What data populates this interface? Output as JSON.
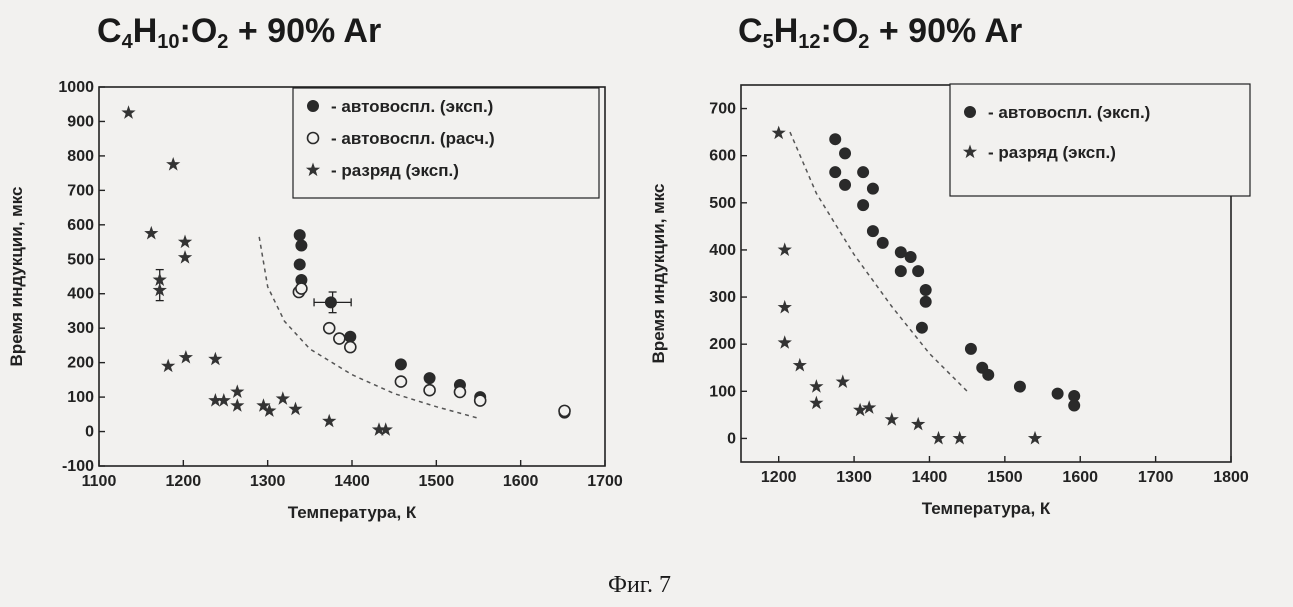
{
  "figure_caption": "Фиг. 7",
  "chart_data": [
    {
      "type": "scatter",
      "title_parts": [
        "C",
        "4",
        "H",
        "10",
        ":O",
        "2",
        " + 90% Ar"
      ],
      "xlabel": "Температура, К",
      "ylabel": "Время индукции, мкс",
      "xlim": [
        1100,
        1700
      ],
      "ylim": [
        -100,
        1000
      ],
      "xticks": [
        1100,
        1200,
        1300,
        1400,
        1500,
        1600,
        1700
      ],
      "yticks": [
        -100,
        0,
        100,
        200,
        300,
        400,
        500,
        600,
        700,
        800,
        900,
        1000
      ],
      "grid": false,
      "legend_position": "top-right",
      "series": [
        {
          "name": "- автовоспл. (эксп.)",
          "marker": "filled-circle",
          "points": [
            [
              1338,
              570
            ],
            [
              1340,
              540
            ],
            [
              1338,
              485
            ],
            [
              1340,
              440
            ],
            [
              1375,
              375
            ],
            [
              1398,
              275
            ],
            [
              1458,
              195
            ],
            [
              1492,
              155
            ],
            [
              1528,
              135
            ],
            [
              1552,
              100
            ],
            [
              1652,
              55
            ]
          ]
        },
        {
          "name": "- автовоспл. (расч.)",
          "marker": "open-circle",
          "points": [
            [
              1337,
              405
            ],
            [
              1340,
              415
            ],
            [
              1373,
              300
            ],
            [
              1385,
              270
            ],
            [
              1398,
              245
            ],
            [
              1458,
              145
            ],
            [
              1492,
              120
            ],
            [
              1528,
              115
            ],
            [
              1552,
              90
            ],
            [
              1652,
              60
            ]
          ]
        },
        {
          "name": "- разряд (эксп.)",
          "marker": "star",
          "points": [
            [
              1135,
              925
            ],
            [
              1188,
              775
            ],
            [
              1162,
              575
            ],
            [
              1202,
              550
            ],
            [
              1202,
              505
            ],
            [
              1172,
              440
            ],
            [
              1172,
              410
            ],
            [
              1182,
              190
            ],
            [
              1203,
              215
            ],
            [
              1238,
              210
            ],
            [
              1238,
              90
            ],
            [
              1248,
              90
            ],
            [
              1264,
              115
            ],
            [
              1264,
              75
            ],
            [
              1295,
              75
            ],
            [
              1302,
              60
            ],
            [
              1318,
              95
            ],
            [
              1333,
              65
            ],
            [
              1373,
              30
            ],
            [
              1432,
              5
            ],
            [
              1440,
              5
            ]
          ]
        }
      ],
      "error_bars": [
        {
          "x": 1172,
          "y": 425,
          "yerr": 45
        },
        {
          "x": 1377,
          "y": 375,
          "xerr": 22,
          "yerr": 30
        }
      ],
      "dashed_curve": [
        [
          1290,
          565
        ],
        [
          1300,
          420
        ],
        [
          1320,
          320
        ],
        [
          1350,
          240
        ],
        [
          1400,
          165
        ],
        [
          1450,
          110
        ],
        [
          1500,
          72
        ],
        [
          1548,
          40
        ]
      ]
    },
    {
      "type": "scatter",
      "title_parts": [
        "C",
        "5",
        "H",
        "12",
        ":O",
        "2",
        " + 90% Ar"
      ],
      "xlabel": "Температура, К",
      "ylabel": "Время индукции, мкс",
      "xlim": [
        1150,
        1800
      ],
      "ylim": [
        -50,
        750
      ],
      "xticks": [
        1200,
        1300,
        1400,
        1500,
        1600,
        1700,
        1800
      ],
      "yticks": [
        0,
        100,
        200,
        300,
        400,
        500,
        600,
        700
      ],
      "grid": false,
      "legend_position": "top-right",
      "series": [
        {
          "name": "- автовоспл. (эксп.)",
          "marker": "filled-circle",
          "points": [
            [
              1275,
              635
            ],
            [
              1288,
              605
            ],
            [
              1275,
              565
            ],
            [
              1288,
              538
            ],
            [
              1312,
              565
            ],
            [
              1325,
              530
            ],
            [
              1312,
              495
            ],
            [
              1325,
              440
            ],
            [
              1338,
              415
            ],
            [
              1362,
              395
            ],
            [
              1375,
              385
            ],
            [
              1362,
              355
            ],
            [
              1385,
              355
            ],
            [
              1395,
              315
            ],
            [
              1395,
              290
            ],
            [
              1390,
              235
            ],
            [
              1455,
              190
            ],
            [
              1470,
              150
            ],
            [
              1478,
              135
            ],
            [
              1520,
              110
            ],
            [
              1570,
              95
            ],
            [
              1592,
              90
            ],
            [
              1592,
              70
            ]
          ]
        },
        {
          "name": "- разряд (эксп.)",
          "marker": "star",
          "points": [
            [
              1200,
              648
            ],
            [
              1208,
              400
            ],
            [
              1208,
              278
            ],
            [
              1208,
              203
            ],
            [
              1228,
              155
            ],
            [
              1250,
              110
            ],
            [
              1250,
              75
            ],
            [
              1285,
              120
            ],
            [
              1308,
              60
            ],
            [
              1320,
              65
            ],
            [
              1350,
              40
            ],
            [
              1385,
              30
            ],
            [
              1412,
              0
            ],
            [
              1440,
              0
            ],
            [
              1540,
              0
            ]
          ]
        }
      ],
      "dashed_curve": [
        [
          1215,
          650
        ],
        [
          1250,
          520
        ],
        [
          1300,
          390
        ],
        [
          1350,
          280
        ],
        [
          1400,
          180
        ],
        [
          1450,
          100
        ]
      ]
    }
  ]
}
